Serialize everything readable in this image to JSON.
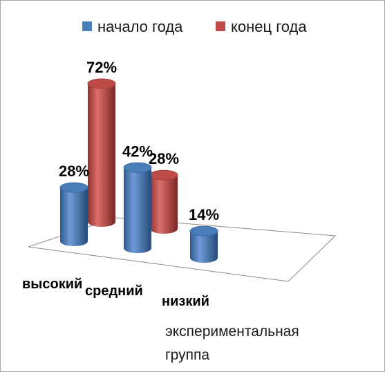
{
  "chart_data": {
    "type": "bar",
    "categories": [
      "высокий",
      "средний",
      "низкий"
    ],
    "series": [
      {
        "name": "начало года",
        "values": [
          28,
          42,
          14
        ],
        "color": "#4a7ebb"
      },
      {
        "name": "конец года",
        "values": [
          72,
          28,
          0
        ],
        "color": "#be4b48"
      }
    ],
    "value_format": "%",
    "legend": "top",
    "grid": false
  },
  "caption": {
    "line1": "экспериментальная",
    "line2": "группа"
  }
}
